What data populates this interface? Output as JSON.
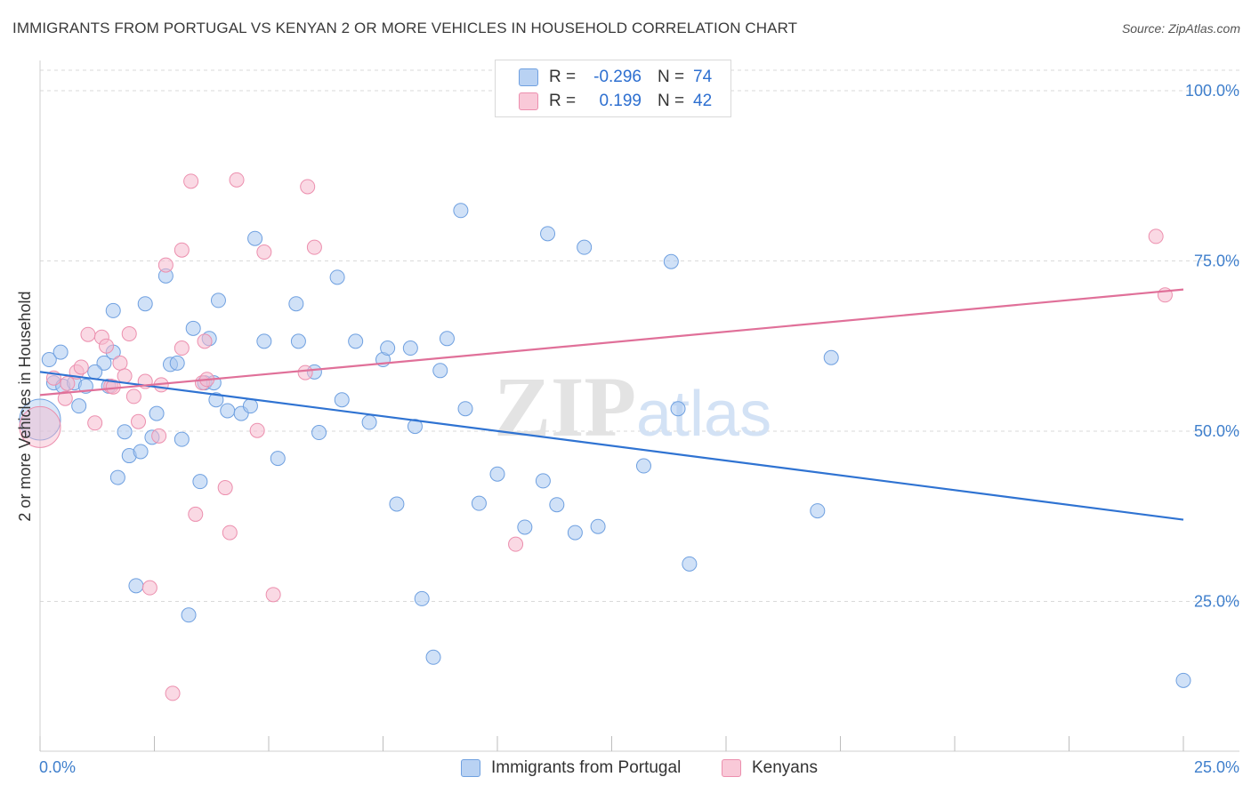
{
  "title": "IMMIGRANTS FROM PORTUGAL VS KENYAN 2 OR MORE VEHICLES IN HOUSEHOLD CORRELATION CHART",
  "source": "Source: ZipAtlas.com",
  "watermark": {
    "zip": "ZIP",
    "atlas": "atlas"
  },
  "legend": {
    "rows": [
      {
        "r_label": "R =",
        "r_value": "-0.296",
        "n_label": "N =",
        "n_value": "74"
      },
      {
        "r_label": "R =",
        "r_value": "0.199",
        "n_label": "N =",
        "n_value": "42"
      }
    ]
  },
  "colors": {
    "portugal_fill": "#a9c8f0",
    "portugal_stroke": "#6fa0e0",
    "portugal_line": "#2f73d2",
    "kenyan_fill": "#f6b9cd",
    "kenyan_stroke": "#ec8fae",
    "kenyan_line": "#e07099",
    "grid": "#d9d9d9",
    "tick_label": "#3f7fcc"
  },
  "chart_data": {
    "type": "scatter",
    "title": "IMMIGRANTS FROM PORTUGAL VS KENYAN 2 OR MORE VEHICLES IN HOUSEHOLD CORRELATION CHART",
    "xlabel": "",
    "ylabel": "2 or more Vehicles in Household",
    "xlim": [
      0,
      25
    ],
    "ylim": [
      3,
      103
    ],
    "x_tick_labels": [
      "0.0%",
      "25.0%"
    ],
    "y_ticks": [
      25,
      50,
      75,
      100
    ],
    "y_tick_labels": [
      "25.0%",
      "50.0%",
      "75.0%",
      "100.0%"
    ],
    "grid": true,
    "legend_position": "bottom",
    "series": [
      {
        "name": "Immigrants from Portugal",
        "trend": {
          "x": [
            0,
            25
          ],
          "y": [
            58.7,
            37.0
          ]
        },
        "points": [
          {
            "x": 0.0,
            "y": 51.7,
            "big": true
          },
          {
            "x": 0.2,
            "y": 60.5
          },
          {
            "x": 0.3,
            "y": 57.1
          },
          {
            "x": 0.45,
            "y": 61.6
          },
          {
            "x": 0.5,
            "y": 56.6
          },
          {
            "x": 0.75,
            "y": 57.1
          },
          {
            "x": 0.85,
            "y": 53.7
          },
          {
            "x": 1.0,
            "y": 56.6
          },
          {
            "x": 1.4,
            "y": 60.0
          },
          {
            "x": 1.5,
            "y": 56.6
          },
          {
            "x": 1.6,
            "y": 61.6
          },
          {
            "x": 1.6,
            "y": 67.7
          },
          {
            "x": 1.7,
            "y": 43.2
          },
          {
            "x": 1.2,
            "y": 58.7
          },
          {
            "x": 1.85,
            "y": 49.9
          },
          {
            "x": 1.95,
            "y": 46.4
          },
          {
            "x": 2.1,
            "y": 27.3
          },
          {
            "x": 2.2,
            "y": 47.0
          },
          {
            "x": 2.3,
            "y": 68.7
          },
          {
            "x": 2.45,
            "y": 49.1
          },
          {
            "x": 2.55,
            "y": 52.6
          },
          {
            "x": 2.75,
            "y": 72.8
          },
          {
            "x": 2.85,
            "y": 59.8
          },
          {
            "x": 3.0,
            "y": 60.0
          },
          {
            "x": 3.1,
            "y": 48.8
          },
          {
            "x": 3.25,
            "y": 23.0
          },
          {
            "x": 3.35,
            "y": 65.1
          },
          {
            "x": 3.5,
            "y": 42.6
          },
          {
            "x": 3.6,
            "y": 57.1
          },
          {
            "x": 3.7,
            "y": 63.6
          },
          {
            "x": 3.8,
            "y": 57.1
          },
          {
            "x": 3.85,
            "y": 54.6
          },
          {
            "x": 3.9,
            "y": 69.2
          },
          {
            "x": 4.1,
            "y": 53.0
          },
          {
            "x": 4.4,
            "y": 52.6
          },
          {
            "x": 4.6,
            "y": 53.7
          },
          {
            "x": 4.7,
            "y": 78.3
          },
          {
            "x": 4.9,
            "y": 63.2
          },
          {
            "x": 5.2,
            "y": 46.0
          },
          {
            "x": 5.6,
            "y": 68.7
          },
          {
            "x": 5.65,
            "y": 63.2
          },
          {
            "x": 6.0,
            "y": 58.7
          },
          {
            "x": 6.1,
            "y": 49.8
          },
          {
            "x": 6.5,
            "y": 72.6
          },
          {
            "x": 6.6,
            "y": 54.6
          },
          {
            "x": 6.9,
            "y": 63.2
          },
          {
            "x": 7.2,
            "y": 51.3
          },
          {
            "x": 7.5,
            "y": 60.5
          },
          {
            "x": 7.6,
            "y": 62.2
          },
          {
            "x": 7.8,
            "y": 39.3
          },
          {
            "x": 8.1,
            "y": 62.2
          },
          {
            "x": 8.2,
            "y": 50.7
          },
          {
            "x": 8.35,
            "y": 25.4
          },
          {
            "x": 8.6,
            "y": 16.8
          },
          {
            "x": 8.75,
            "y": 58.9
          },
          {
            "x": 8.9,
            "y": 63.6
          },
          {
            "x": 9.2,
            "y": 82.4
          },
          {
            "x": 9.3,
            "y": 53.3
          },
          {
            "x": 9.6,
            "y": 39.4
          },
          {
            "x": 10.0,
            "y": 43.7
          },
          {
            "x": 10.6,
            "y": 35.9
          },
          {
            "x": 11.0,
            "y": 42.7
          },
          {
            "x": 11.1,
            "y": 79.0
          },
          {
            "x": 11.3,
            "y": 39.2
          },
          {
            "x": 11.7,
            "y": 35.1
          },
          {
            "x": 11.9,
            "y": 77.0
          },
          {
            "x": 12.2,
            "y": 36.0
          },
          {
            "x": 13.2,
            "y": 44.9
          },
          {
            "x": 13.8,
            "y": 74.9
          },
          {
            "x": 13.95,
            "y": 53.3
          },
          {
            "x": 14.2,
            "y": 30.5
          },
          {
            "x": 17.0,
            "y": 38.3
          },
          {
            "x": 17.3,
            "y": 60.8
          },
          {
            "x": 25.0,
            "y": 13.4
          }
        ]
      },
      {
        "name": "Kenyans",
        "trend": {
          "x": [
            0,
            25
          ],
          "y": [
            55.3,
            70.8
          ]
        },
        "points": [
          {
            "x": 0.0,
            "y": 50.6,
            "big": true
          },
          {
            "x": 0.3,
            "y": 57.8
          },
          {
            "x": 0.55,
            "y": 54.8
          },
          {
            "x": 0.8,
            "y": 58.7
          },
          {
            "x": 0.9,
            "y": 59.4
          },
          {
            "x": 1.05,
            "y": 64.2
          },
          {
            "x": 1.2,
            "y": 51.2
          },
          {
            "x": 1.35,
            "y": 63.8
          },
          {
            "x": 1.45,
            "y": 62.5
          },
          {
            "x": 1.55,
            "y": 56.6
          },
          {
            "x": 1.75,
            "y": 60.0
          },
          {
            "x": 1.85,
            "y": 58.1
          },
          {
            "x": 1.95,
            "y": 64.3
          },
          {
            "x": 2.05,
            "y": 55.1
          },
          {
            "x": 2.15,
            "y": 51.4
          },
          {
            "x": 2.3,
            "y": 57.3
          },
          {
            "x": 2.4,
            "y": 27.0
          },
          {
            "x": 2.6,
            "y": 49.3
          },
          {
            "x": 2.65,
            "y": 56.8
          },
          {
            "x": 2.75,
            "y": 74.4
          },
          {
            "x": 2.9,
            "y": 11.5
          },
          {
            "x": 3.1,
            "y": 62.2
          },
          {
            "x": 3.1,
            "y": 76.6
          },
          {
            "x": 3.3,
            "y": 86.7
          },
          {
            "x": 3.4,
            "y": 37.8
          },
          {
            "x": 3.55,
            "y": 57.1
          },
          {
            "x": 3.6,
            "y": 63.2
          },
          {
            "x": 4.05,
            "y": 41.7
          },
          {
            "x": 4.15,
            "y": 35.1
          },
          {
            "x": 4.3,
            "y": 86.9
          },
          {
            "x": 4.75,
            "y": 50.1
          },
          {
            "x": 4.9,
            "y": 76.3
          },
          {
            "x": 5.1,
            "y": 26.0
          },
          {
            "x": 5.8,
            "y": 58.6
          },
          {
            "x": 5.85,
            "y": 85.9
          },
          {
            "x": 6.0,
            "y": 77.0
          },
          {
            "x": 10.4,
            "y": 33.4
          },
          {
            "x": 24.4,
            "y": 78.6
          },
          {
            "x": 24.6,
            "y": 70.0
          },
          {
            "x": 0.6,
            "y": 57.0
          },
          {
            "x": 1.6,
            "y": 56.5
          },
          {
            "x": 3.65,
            "y": 57.6
          }
        ]
      }
    ]
  },
  "bottom_legend": [
    {
      "label": "Immigrants from Portugal"
    },
    {
      "label": "Kenyans"
    }
  ]
}
